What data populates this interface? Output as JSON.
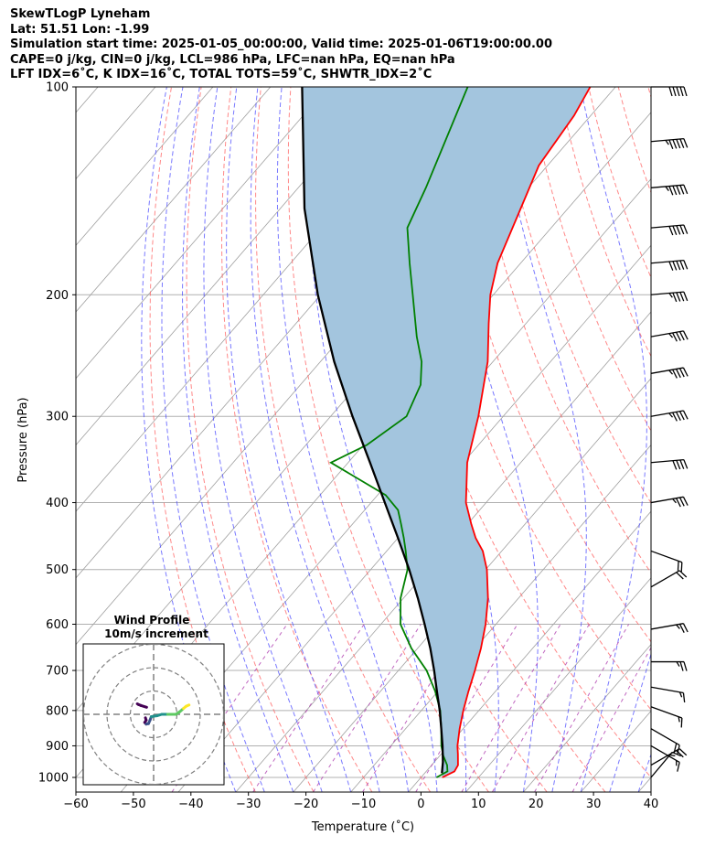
{
  "header": {
    "line1": "SkewTLogP Lyneham",
    "line2": "Lat: 51.51   Lon: -1.99",
    "line3": "Simulation start time: 2025-01-05_00:00:00, Valid time: 2025-01-06T19:00:00.00",
    "line4": "CAPE=0 j/kg, CIN=0 j/kg, LCL=986 hPa, LFC=nan hPa, EQ=nan hPa",
    "line5": "LFT IDX=6˚C, K IDX=16˚C, TOTAL TOTS=59˚C, SHWTR_IDX=2˚C"
  },
  "chart_data": [
    {
      "type": "line",
      "title": "",
      "xlabel": "Temperature (˚C)",
      "ylabel": "Pressure (hPa)",
      "y_scale": "log",
      "xlim": [
        -60,
        40
      ],
      "ylim": [
        1050,
        100
      ],
      "x_ticks": [
        "−60",
        "−50",
        "−40",
        "−30",
        "−20",
        "−10",
        "0",
        "10",
        "20",
        "30",
        "40"
      ],
      "y_ticks": [
        "100",
        "200",
        "300",
        "400",
        "500",
        "600",
        "700",
        "800",
        "900",
        "1000"
      ],
      "series": [
        {
          "name": "Temperature",
          "color": "#ff0000",
          "points": [
            [
              1000,
              3.7
            ],
            [
              980,
              4.9
            ],
            [
              960,
              4.6
            ],
            [
              925,
              2.9
            ],
            [
              900,
              1.6
            ],
            [
              850,
              -0.6
            ],
            [
              800,
              -2.7
            ],
            [
              750,
              -4.7
            ],
            [
              700,
              -6.7
            ],
            [
              650,
              -9.0
            ],
            [
              600,
              -11.8
            ],
            [
              550,
              -15.3
            ],
            [
              500,
              -19.8
            ],
            [
              470,
              -23.3
            ],
            [
              450,
              -26.5
            ],
            [
              430,
              -29.3
            ],
            [
              400,
              -33.5
            ],
            [
              350,
              -39.3
            ],
            [
              300,
              -44.3
            ],
            [
              250,
              -50.9
            ],
            [
              220,
              -56.5
            ],
            [
              200,
              -60.5
            ],
            [
              180,
              -64.0
            ],
            [
              150,
              -68.2
            ],
            [
              130,
              -71.5
            ],
            [
              110,
              -72.9
            ],
            [
              100,
              -74.4
            ]
          ]
        },
        {
          "name": "Dewpoint",
          "color": "#008000",
          "points": [
            [
              1000,
              2.7
            ],
            [
              980,
              3.7
            ],
            [
              960,
              2.7
            ],
            [
              930,
              0.6
            ],
            [
              900,
              -1.2
            ],
            [
              850,
              -3.8
            ],
            [
              800,
              -6.7
            ],
            [
              750,
              -10.5
            ],
            [
              700,
              -15.1
            ],
            [
              650,
              -21.1
            ],
            [
              600,
              -26.6
            ],
            [
              550,
              -30.5
            ],
            [
              500,
              -33.6
            ],
            [
              470,
              -36.7
            ],
            [
              450,
              -39.0
            ],
            [
              430,
              -41.5
            ],
            [
              410,
              -44.2
            ],
            [
              390,
              -48.6
            ],
            [
              350,
              -63.0
            ],
            [
              330,
              -59.4
            ],
            [
              300,
              -56.8
            ],
            [
              270,
              -59.1
            ],
            [
              250,
              -62.4
            ],
            [
              230,
              -67.0
            ],
            [
              200,
              -74.0
            ],
            [
              180,
              -79.3
            ],
            [
              160,
              -85.0
            ],
            [
              140,
              -87.8
            ],
            [
              100,
              -95.7
            ]
          ]
        },
        {
          "name": "Parcel",
          "color": "#000000",
          "points": [
            [
              986,
              3.0
            ],
            [
              950,
              1.5
            ],
            [
              900,
              -1.0
            ],
            [
              850,
              -3.8
            ],
            [
              800,
              -6.8
            ],
            [
              750,
              -10.2
            ],
            [
              700,
              -13.8
            ],
            [
              650,
              -17.8
            ],
            [
              600,
              -22.4
            ],
            [
              550,
              -27.5
            ],
            [
              500,
              -33.3
            ],
            [
              450,
              -40.0
            ],
            [
              400,
              -47.6
            ],
            [
              350,
              -56.2
            ],
            [
              300,
              -66.2
            ],
            [
              250,
              -77.6
            ],
            [
              200,
              -90.5
            ],
            [
              150,
              -105.8
            ],
            [
              100,
              -124.5
            ]
          ]
        }
      ],
      "fill_between": {
        "series": [
          "Temperature",
          "Parcel"
        ],
        "color": "#a3c5de"
      },
      "wind_barbs_kt": [
        [
          100,
          270,
          50
        ],
        [
          120,
          265,
          55
        ],
        [
          140,
          265,
          55
        ],
        [
          160,
          265,
          50
        ],
        [
          180,
          265,
          50
        ],
        [
          200,
          265,
          45
        ],
        [
          230,
          260,
          45
        ],
        [
          260,
          260,
          45
        ],
        [
          300,
          260,
          45
        ],
        [
          350,
          265,
          40
        ],
        [
          400,
          260,
          35
        ],
        [
          470,
          290,
          20
        ],
        [
          530,
          240,
          20
        ],
        [
          610,
          260,
          25
        ],
        [
          680,
          270,
          25
        ],
        [
          740,
          280,
          15
        ],
        [
          790,
          290,
          15
        ],
        [
          850,
          300,
          20
        ],
        [
          900,
          300,
          15
        ],
        [
          960,
          240,
          20
        ],
        [
          1000,
          220,
          15
        ]
      ],
      "background_lines": {
        "isotherms": {
          "color": "#a0a0a0"
        },
        "dry_adiabats": {
          "color": "#ff6060"
        },
        "moist_adiabats": {
          "color": "#4c4cff"
        },
        "mixing_ratio": {
          "color": "#b040b0"
        }
      }
    },
    {
      "type": "line",
      "title": "Wind Profile",
      "subtitle": "10m/s increment",
      "rings_ms": [
        10,
        20,
        30
      ],
      "colormap": "viridis",
      "hodograph_uv_ms": [
        [
          -3.5,
          -1.5
        ],
        [
          -3.2,
          -2.5
        ],
        [
          -3.8,
          -3.5
        ],
        [
          -3.2,
          -4.2
        ],
        [
          -2.2,
          -4.0
        ],
        [
          -1.5,
          -2.4
        ],
        [
          -1.0,
          -1.0
        ],
        [
          1.5,
          -0.6
        ],
        [
          3.5,
          0.0
        ],
        [
          6.0,
          0.0
        ],
        [
          9.5,
          0.0
        ],
        [
          11.2,
          1.1
        ],
        [
          12.8,
          2.5
        ],
        [
          14.0,
          3.5
        ],
        [
          15.2,
          4.0
        ]
      ],
      "hodograph_tail_uv_ms": [
        [
          -3.0,
          3.0
        ],
        [
          -5.5,
          3.8
        ],
        [
          -6.5,
          4.2
        ],
        [
          -7.0,
          4.5
        ]
      ]
    }
  ]
}
